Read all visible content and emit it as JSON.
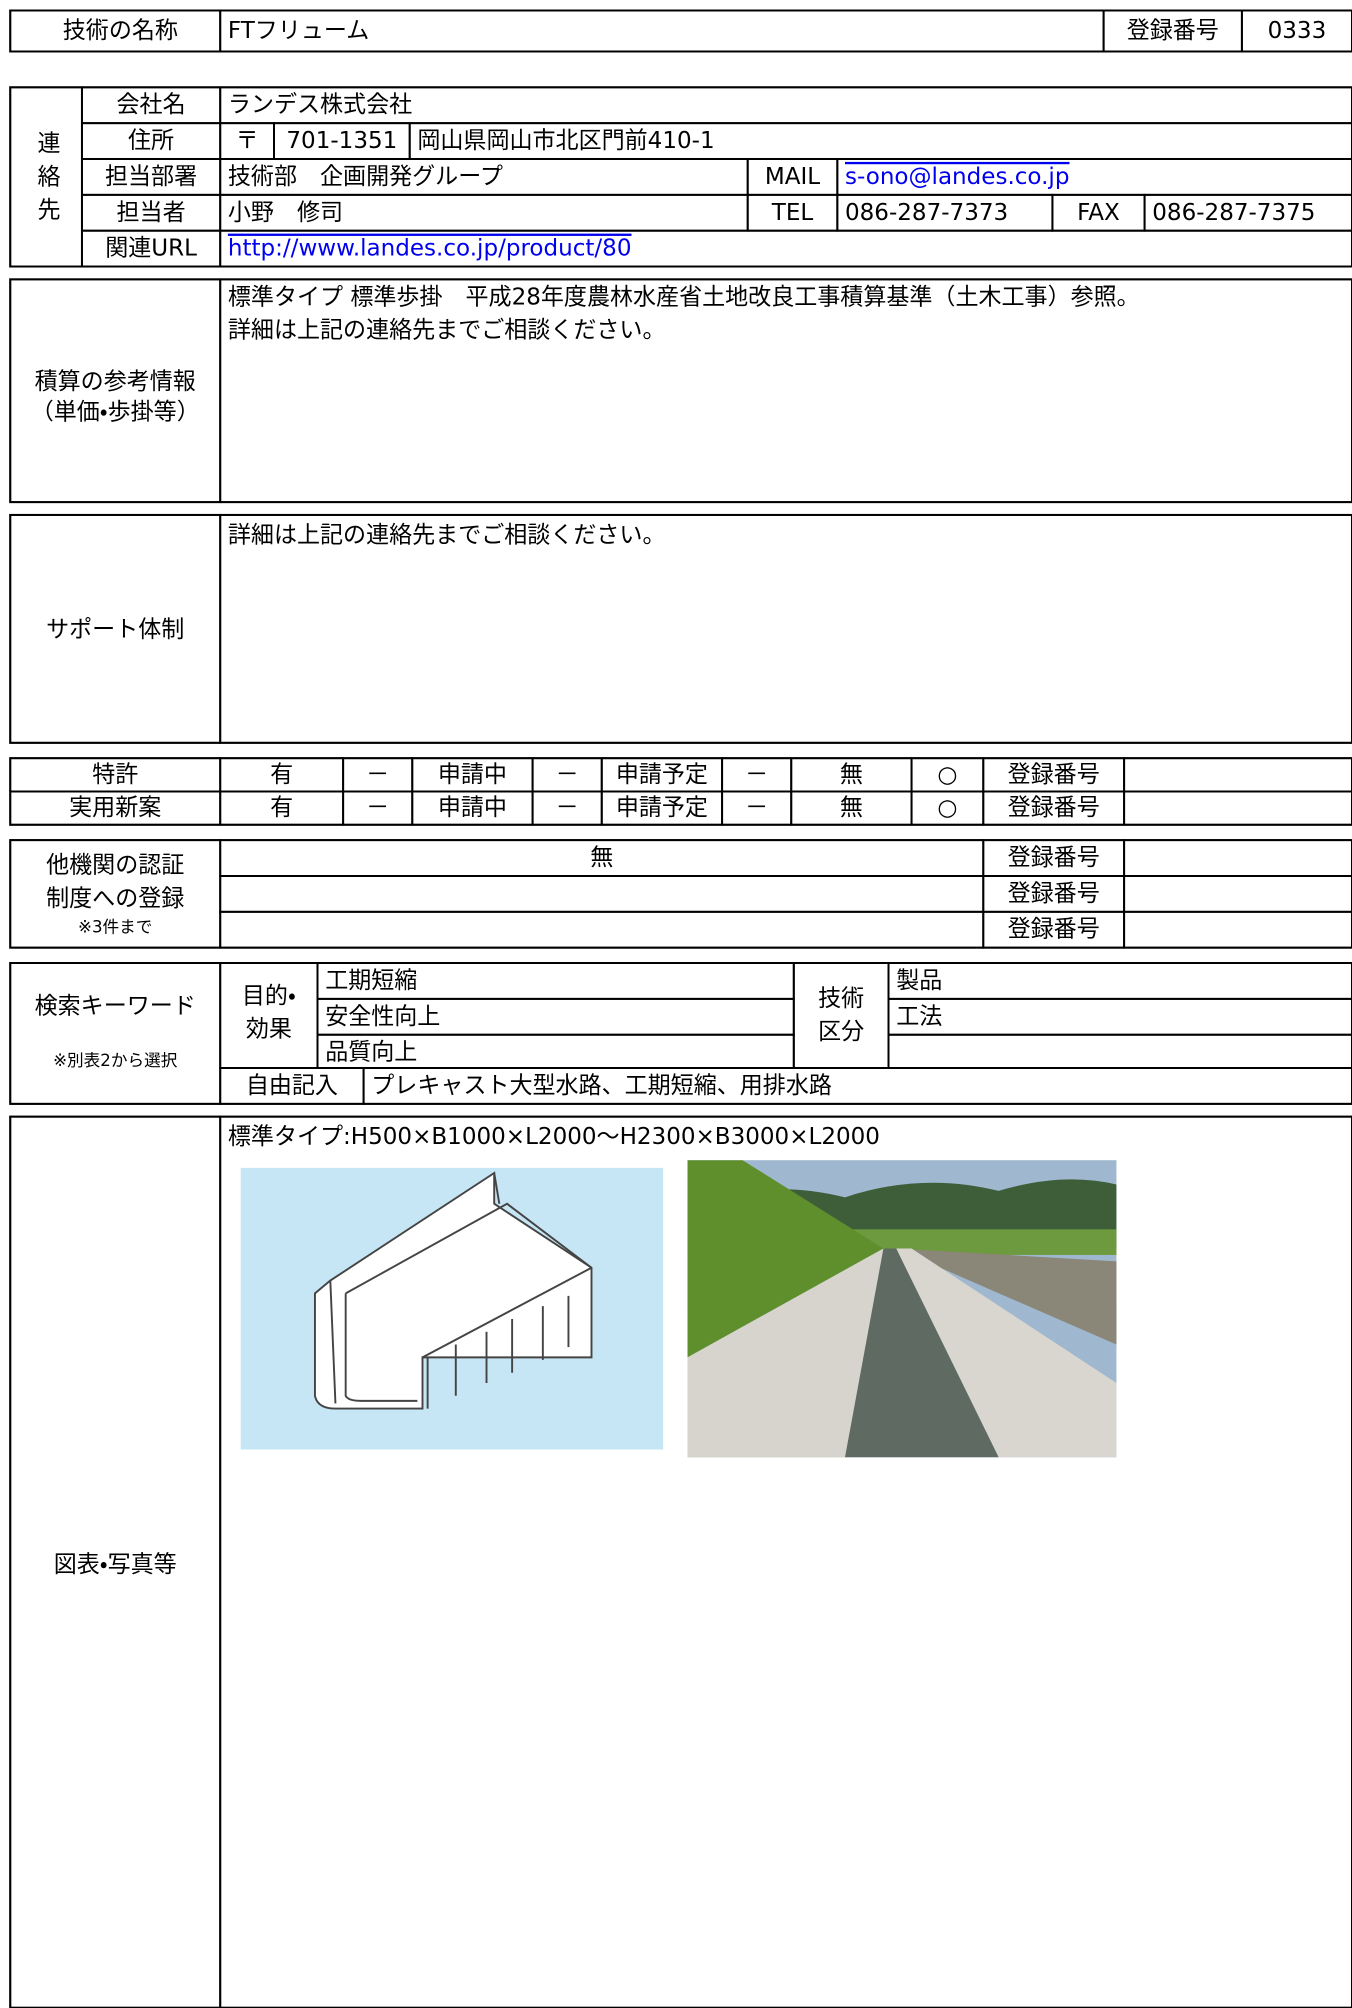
{
  "header": {
    "label": "技術の名称",
    "name": "FTフリューム",
    "reg_label": "登録番号",
    "reg_no": "0333"
  },
  "contact": {
    "label": "連絡先",
    "company": {
      "label": "会社名",
      "value": "ランデス株式会社"
    },
    "address": {
      "label": "住所",
      "postal_mark": "〒",
      "postal_code": "701-1351",
      "value": "岡山県岡山市北区門前410-1"
    },
    "department": {
      "label": "担当部署",
      "value": "技術部　企画開発グループ",
      "mail_label": "MAIL",
      "mail": "s-ono@landes.co.jp"
    },
    "person": {
      "label": "担当者",
      "value": "小野　修司",
      "tel_label": "TEL",
      "tel": "086-287-7373",
      "fax_label": "FAX",
      "fax": "086-287-7375"
    },
    "url": {
      "label": "関連URL",
      "value": "http://www.landes.co.jp/product/80"
    }
  },
  "estimate": {
    "label": [
      "積算の参考情報",
      "（単価・歩掛等）"
    ],
    "content": [
      "標準タイプ 標準歩掛　平成28年度農林水産省土地改良工事積算基準（土木工事）参照。",
      "詳細は上記の連絡先までご相談ください。"
    ]
  },
  "support": {
    "label": "サポート体制",
    "content": [
      "詳細は上記の連絡先までご相談ください。"
    ]
  },
  "patents": {
    "rows": [
      {
        "label": "特許",
        "cells": [
          "有",
          "－",
          "申請中",
          "－",
          "申請予定",
          "－",
          "無",
          "○",
          "登録番号"
        ]
      },
      {
        "label": "実用新案",
        "cells": [
          "有",
          "－",
          "申請中",
          "－",
          "申請予定",
          "－",
          "無",
          "○",
          "登録番号"
        ]
      }
    ]
  },
  "other_certifications": {
    "label": [
      "他機関の認証",
      "制度への登録"
    ],
    "note": "※3件まで",
    "entries": [
      {
        "name": "無",
        "reg_label": "登録番号"
      },
      {
        "reg_label": "登録番号"
      },
      {
        "reg_label": "登録番号"
      }
    ]
  },
  "keywords": {
    "label": "検索キーワード",
    "note": "※別表2から選択",
    "purpose_label": [
      "目的・",
      "効果"
    ],
    "purposes": [
      "工期短縮",
      "安全性向上",
      "品質向上"
    ],
    "category_label": [
      "技術",
      "区分"
    ],
    "categories": [
      "製品",
      "工法"
    ],
    "free_label": "自由記入",
    "free_text": "プレキャスト大型水路、工期短縮、用排水路"
  },
  "figures": {
    "label": "図表・写真等",
    "caption": "標準タイプ:H500×B1000×L2000～H2300×B3000×L2000"
  }
}
